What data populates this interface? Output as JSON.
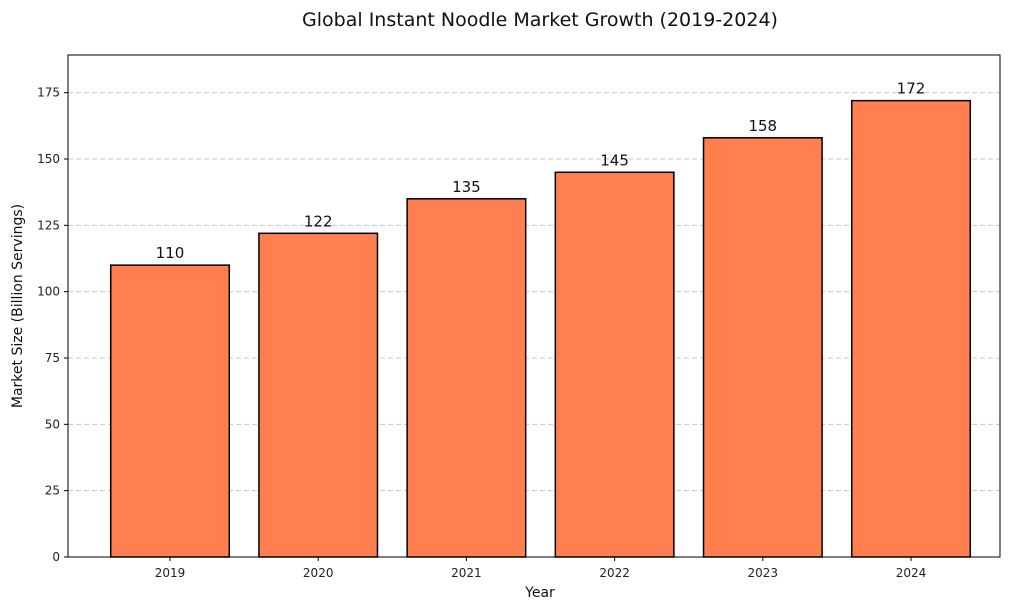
{
  "chart_data": {
    "type": "bar",
    "title": "Global Instant Noodle Market Growth (2019-2024)",
    "xlabel": "Year",
    "ylabel": "Market Size (Billion Servings)",
    "categories": [
      "2019",
      "2020",
      "2021",
      "2022",
      "2023",
      "2024"
    ],
    "values": [
      110,
      122,
      135,
      145,
      158,
      172
    ],
    "data_labels": [
      "110",
      "122",
      "135",
      "145",
      "158",
      "172"
    ],
    "ylim": [
      0,
      189.2
    ],
    "yticks": [
      0,
      25,
      50,
      75,
      100,
      125,
      150,
      175
    ],
    "grid": "y, dashed",
    "legend": "none",
    "colors": {
      "bar": "#FF7F50",
      "edge": "#000000",
      "grid": "#c8c8c8"
    }
  }
}
